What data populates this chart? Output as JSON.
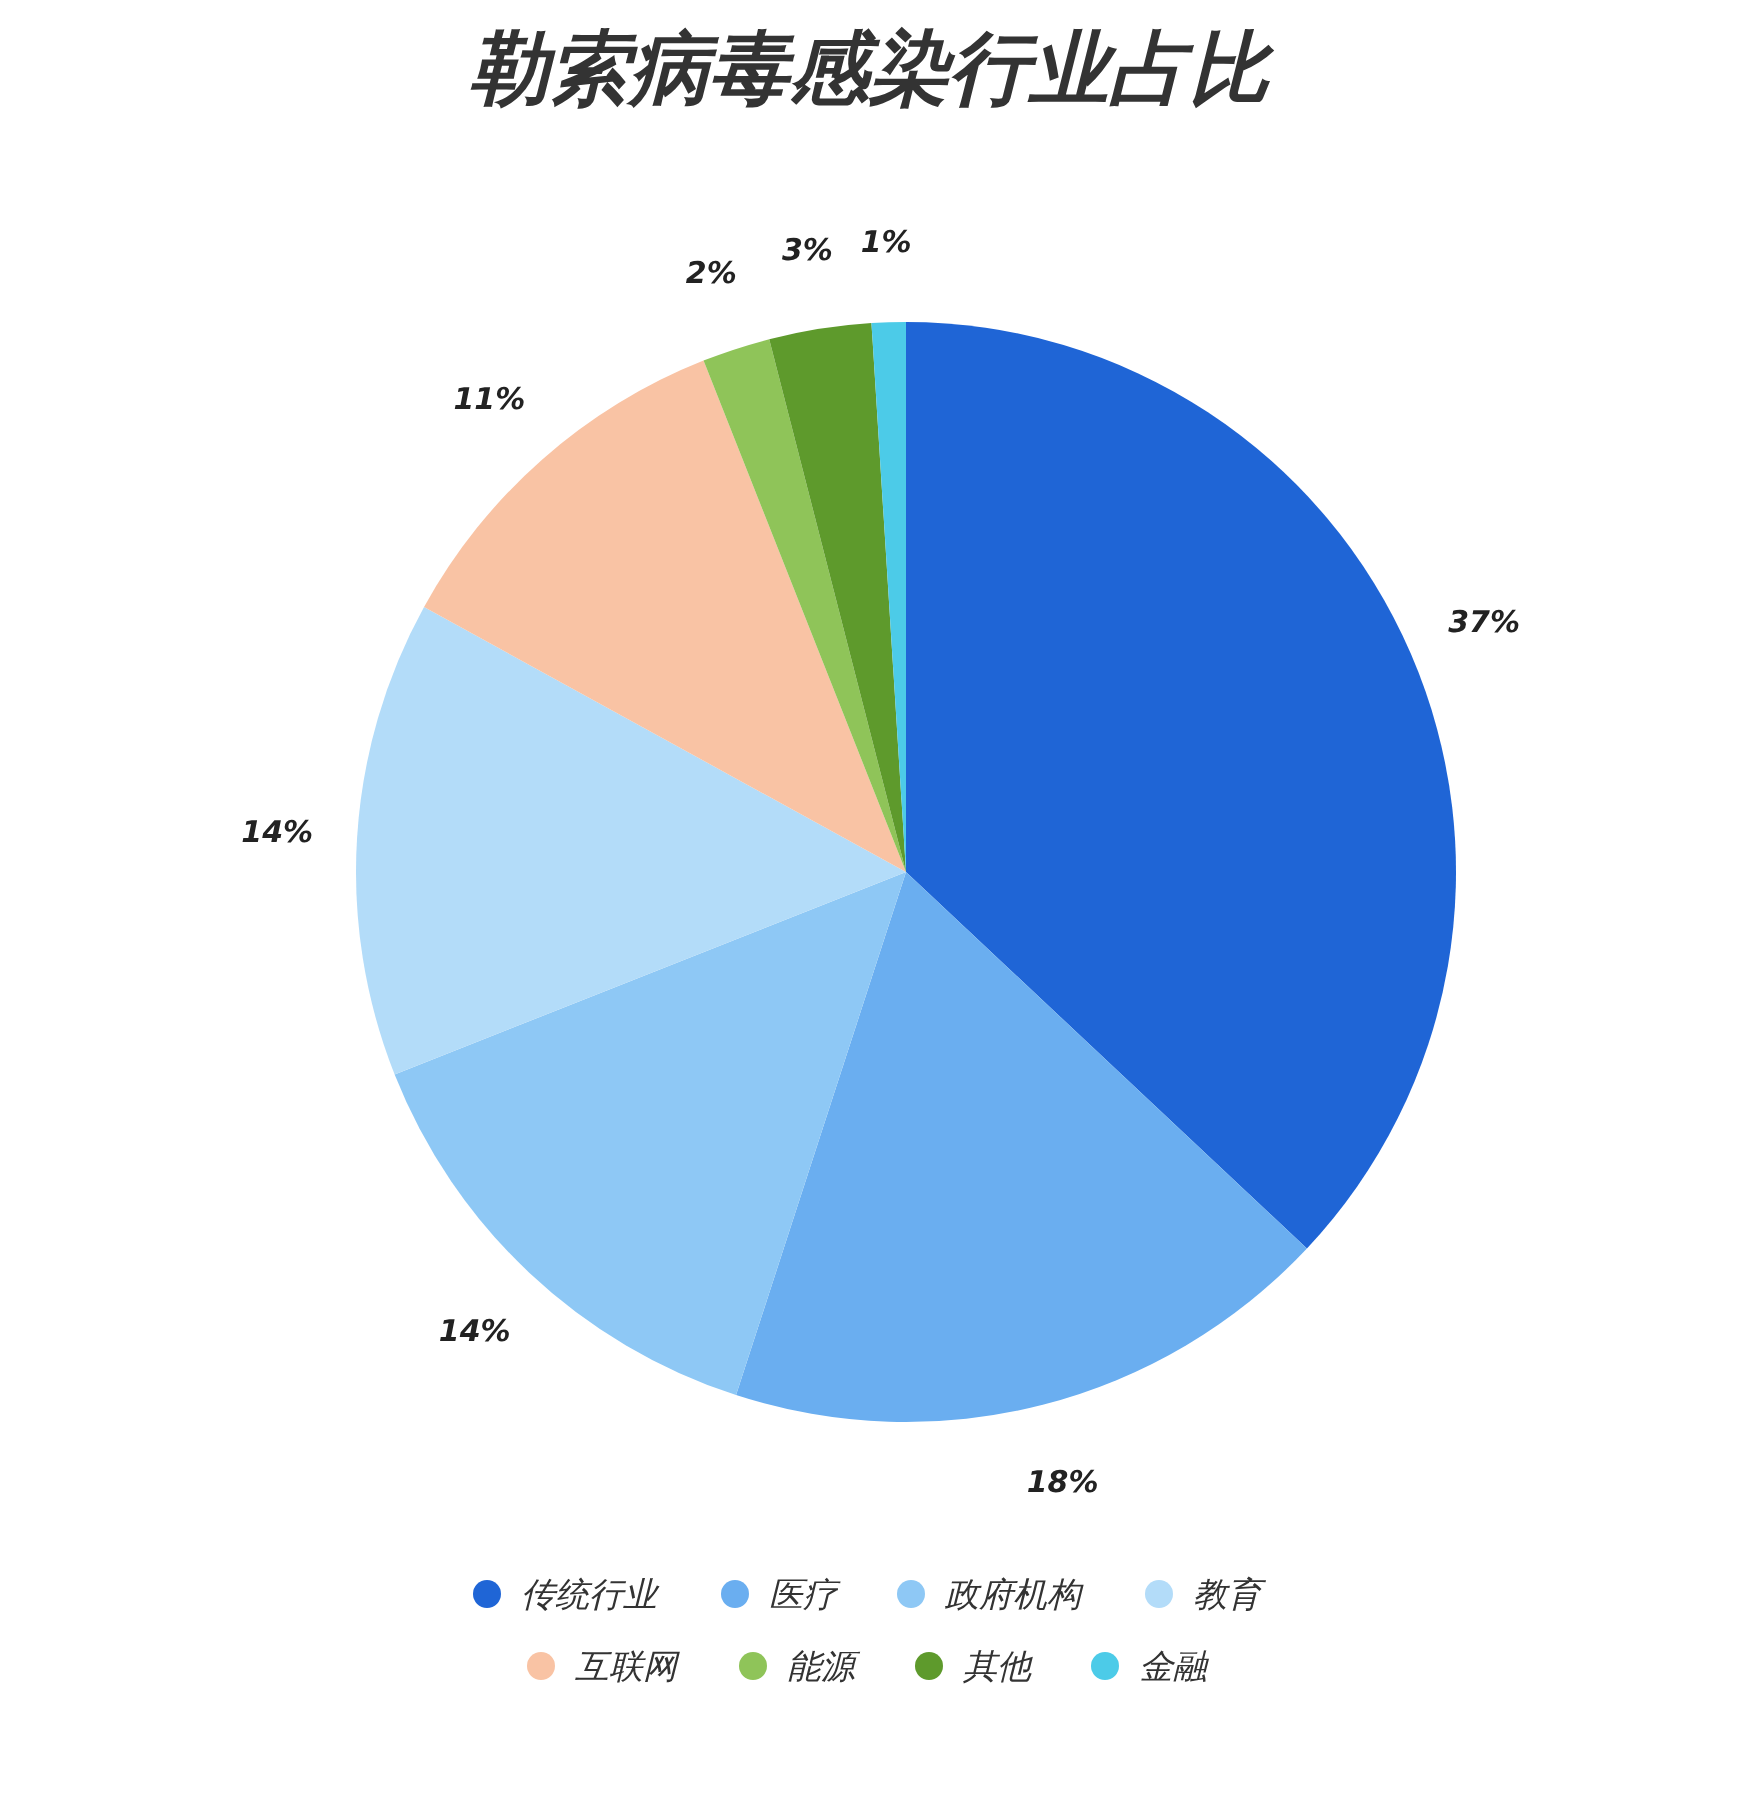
{
  "chart_data": {
    "type": "pie",
    "title": "勒索病毒感染行业占比",
    "categories": [
      "传统行业",
      "医疗",
      "政府机构",
      "教育",
      "互联网",
      "能源",
      "其他",
      "金融"
    ],
    "values": [
      37,
      18,
      14,
      14,
      11,
      2,
      3,
      1
    ],
    "value_labels": [
      "37%",
      "18%",
      "14%",
      "14%",
      "11%",
      "2%",
      "3%",
      "1%"
    ],
    "colors": [
      "#1f65d6",
      "#6aaef0",
      "#8ec8f5",
      "#b3dcf9",
      "#f9c3a4",
      "#8fc459",
      "#5e9a2c",
      "#4ccbe8"
    ],
    "legend": "bottom"
  }
}
